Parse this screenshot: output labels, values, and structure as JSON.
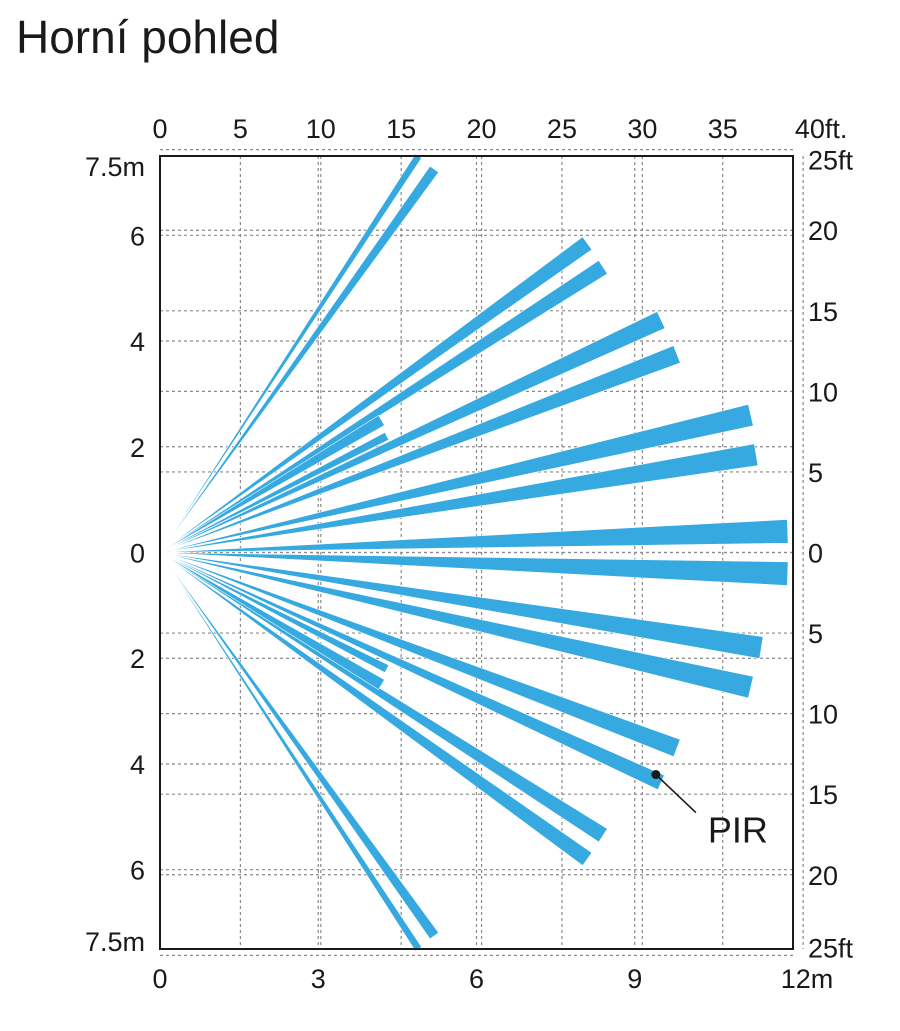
{
  "title": "Horní pohled",
  "colors": {
    "beam": "#36a9e1",
    "grid": "#8a8a8a",
    "text": "#1a1a1a"
  },
  "chart_data": {
    "type": "diagram",
    "x_range_m": [
      0,
      12
    ],
    "y_range_m": [
      -7.5,
      7.5
    ],
    "grid": true,
    "axes": {
      "top_ft": {
        "values": [
          0,
          5,
          10,
          15,
          20,
          25,
          30,
          35,
          40
        ],
        "labels": [
          "0",
          "5",
          "10",
          "15",
          "20",
          "25",
          "30",
          "35",
          "40ft."
        ]
      },
      "bottom_m": {
        "values": [
          0,
          3,
          6,
          9,
          12
        ],
        "labels": [
          "0",
          "3",
          "6",
          "9",
          "12m"
        ]
      },
      "left_m": {
        "values": [
          7.5,
          6,
          4,
          2,
          0,
          -2,
          -4,
          -6,
          -7.5
        ],
        "labels": [
          "7.5m",
          "6",
          "4",
          "2",
          "0",
          "2",
          "4",
          "6",
          "7.5m"
        ]
      },
      "right_ft": {
        "values": [
          25,
          20,
          15,
          10,
          5,
          0,
          -5,
          -10,
          -15,
          -20,
          -25
        ],
        "labels": [
          "25ft",
          "20",
          "15",
          "10",
          "5",
          "0",
          "5",
          "10",
          "15",
          "20",
          "25ft"
        ]
      }
    },
    "origin_m": [
      0,
      0
    ],
    "beams": [
      {
        "end": [
          4.9,
          7.5
        ],
        "width": 0.14
      },
      {
        "end": [
          5.2,
          7.25
        ],
        "width": 0.2
      },
      {
        "end": [
          8.1,
          5.85
        ],
        "width": 0.3
      },
      {
        "end": [
          8.4,
          5.4
        ],
        "width": 0.3
      },
      {
        "end": [
          9.5,
          4.4
        ],
        "width": 0.35
      },
      {
        "end": [
          9.8,
          3.75
        ],
        "width": 0.35
      },
      {
        "end": [
          11.2,
          2.6
        ],
        "width": 0.42
      },
      {
        "end": [
          11.3,
          1.85
        ],
        "width": 0.42
      },
      {
        "end": [
          11.9,
          0.4
        ],
        "width": 0.45
      },
      {
        "end": [
          11.9,
          -0.4
        ],
        "width": 0.45
      },
      {
        "end": [
          11.4,
          -1.8
        ],
        "width": 0.42
      },
      {
        "end": [
          11.2,
          -2.55
        ],
        "width": 0.42
      },
      {
        "end": [
          9.8,
          -3.7
        ],
        "width": 0.35
      },
      {
        "end": [
          9.5,
          -4.35
        ],
        "width": 0.3
      },
      {
        "end": [
          8.4,
          -5.35
        ],
        "width": 0.3
      },
      {
        "end": [
          8.1,
          -5.8
        ],
        "width": 0.3
      },
      {
        "end": [
          5.2,
          -7.25
        ],
        "width": 0.2
      },
      {
        "end": [
          4.9,
          -7.5
        ],
        "width": 0.14
      }
    ],
    "inner_beams": [
      {
        "end": [
          4.2,
          2.5
        ],
        "width": 0.22
      },
      {
        "end": [
          4.3,
          2.2
        ],
        "width": 0.16
      },
      {
        "end": [
          4.3,
          -2.2
        ],
        "width": 0.16
      },
      {
        "end": [
          4.2,
          -2.5
        ],
        "width": 0.22
      }
    ],
    "annotation": {
      "label": "PIR",
      "point_m": [
        9.4,
        -4.2
      ]
    }
  }
}
